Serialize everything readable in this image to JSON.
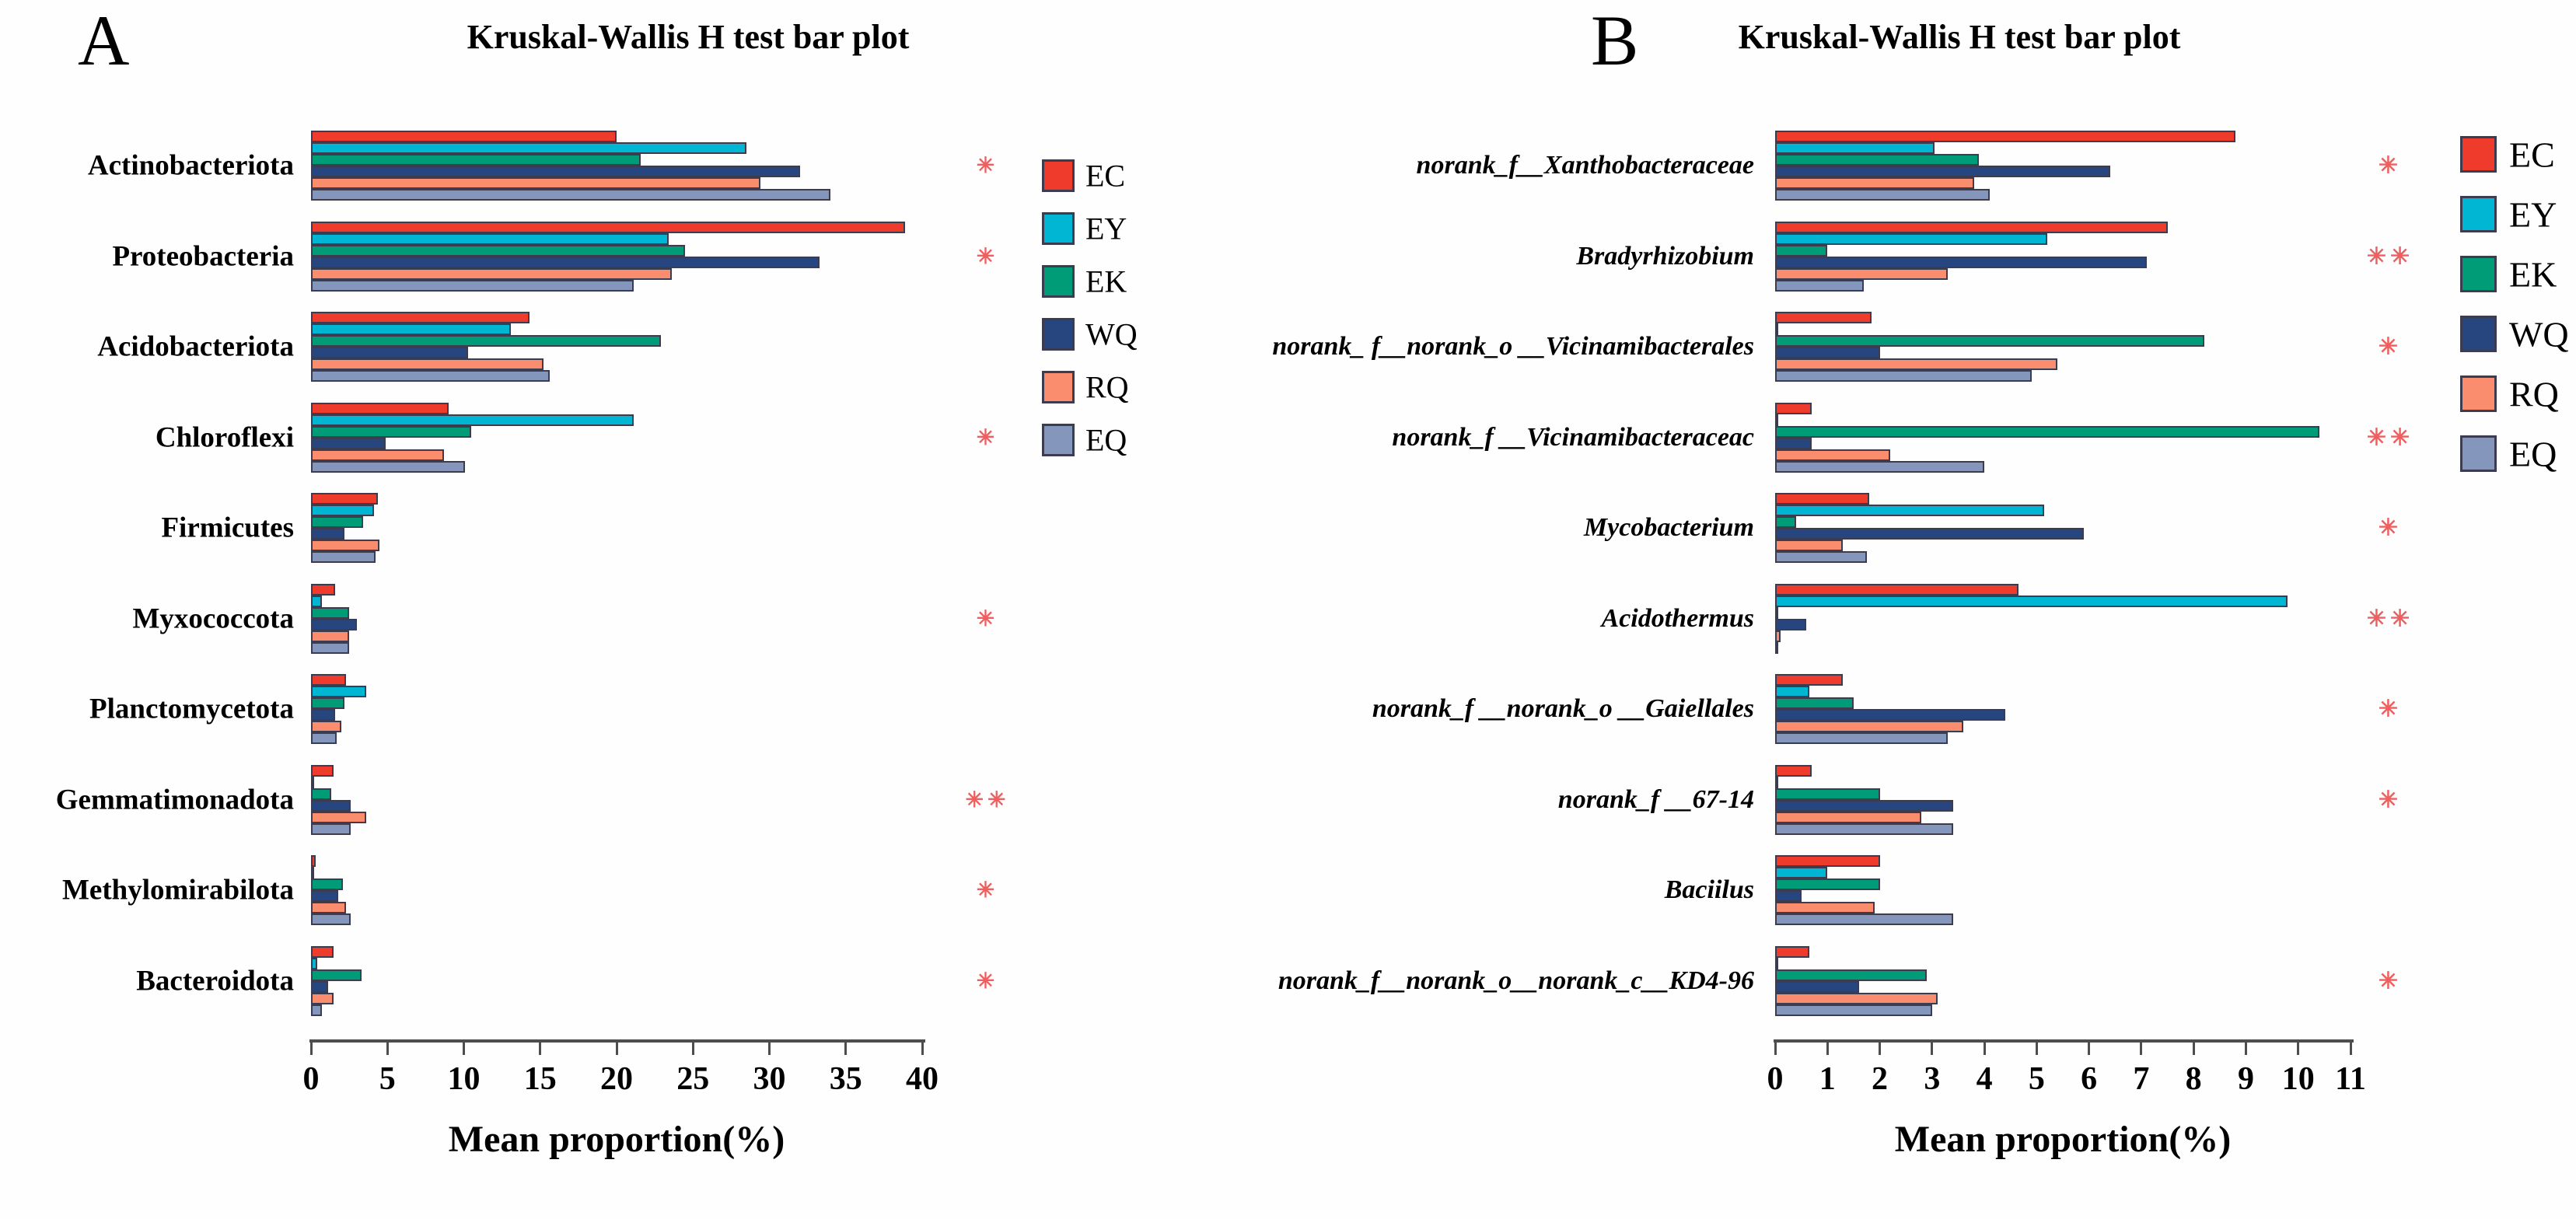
{
  "figure": {
    "description": "Kruskal-Wallis H test bar plots, two panels A and B",
    "significance_marks": {
      "single": "✳",
      "double": "✳✳"
    }
  },
  "colors": {
    "EC": "#EF3B2B",
    "EY": "#00B6D2",
    "EK": "#009C78",
    "WQ": "#27467F",
    "RQ": "#FB8D6F",
    "EQ": "#8496BB",
    "significance": "#EF5F5F",
    "axis": "#4D4D4D",
    "bar_border": "#3C3C50"
  },
  "chart_data": [
    {
      "type": "bar",
      "orientation": "horizontal",
      "panel_letter": "A",
      "title": "Kruskal-Wallis H test bar plot",
      "xlabel": "Mean proportion(%)",
      "xlim": [
        0,
        40
      ],
      "xticks": [
        0,
        5,
        10,
        15,
        20,
        25,
        30,
        35,
        40
      ],
      "grid": false,
      "legend_position": "right",
      "categories": [
        "Actinobacteriota",
        "Proteobacteria",
        "Acidobacteriota",
        "Chloroflexi",
        "Firmicutes",
        "Myxococcota",
        "Planctomycetota",
        "Gemmatimonadota",
        "Methylomirabilota",
        "Bacteroidota"
      ],
      "series": [
        {
          "name": "EC",
          "color": "#EF3B2B",
          "values": [
            20.0,
            38.9,
            14.3,
            9.0,
            4.4,
            1.6,
            2.3,
            1.5,
            0.3,
            1.5
          ]
        },
        {
          "name": "EY",
          "color": "#00B6D2",
          "values": [
            28.5,
            23.4,
            13.1,
            21.1,
            4.1,
            0.7,
            3.6,
            0.1,
            0.05,
            0.4
          ]
        },
        {
          "name": "EK",
          "color": "#009C78",
          "values": [
            21.6,
            24.5,
            22.9,
            10.5,
            3.4,
            2.5,
            2.2,
            1.3,
            2.1,
            3.3
          ]
        },
        {
          "name": "WQ",
          "color": "#27467F",
          "values": [
            32.0,
            33.3,
            10.3,
            4.9,
            2.2,
            3.0,
            1.6,
            2.6,
            1.8,
            1.1
          ]
        },
        {
          "name": "RQ",
          "color": "#FB8D6F",
          "values": [
            29.4,
            23.6,
            15.2,
            8.7,
            4.5,
            2.5,
            2.0,
            3.6,
            2.3,
            1.5
          ]
        },
        {
          "name": "EQ",
          "color": "#8496BB",
          "values": [
            34.0,
            21.1,
            15.6,
            10.1,
            4.2,
            2.5,
            1.7,
            2.6,
            2.6,
            0.7
          ]
        }
      ],
      "significance": [
        "*",
        "*",
        "",
        "*",
        "",
        "*",
        "",
        "**",
        "*",
        "*"
      ]
    },
    {
      "type": "bar",
      "orientation": "horizontal",
      "panel_letter": "B",
      "title": "Kruskal-Wallis H test bar plot",
      "xlabel": "Mean proportion(%)",
      "xlim": [
        0,
        11
      ],
      "xticks": [
        0,
        1,
        2,
        3,
        4,
        5,
        6,
        7,
        8,
        9,
        10,
        11
      ],
      "grid": false,
      "legend_position": "right",
      "categories": [
        "norank_f__Xanthobacteraceae",
        "Bradyrhizobium",
        "norank_ f__norank_o __Vicinamibacterales",
        "norank_f __Vicinamibacteraceac",
        "Mycobacterium",
        "Acidothermus",
        "norank_f __norank_o __Gaiellales",
        "norank_f __67-14",
        "Baciilus",
        "norank_f__norank_o__norank_c__KD4-96"
      ],
      "series": [
        {
          "name": "EC",
          "color": "#EF3B2B",
          "values": [
            8.8,
            7.5,
            1.85,
            0.7,
            1.8,
            4.65,
            1.3,
            0.7,
            2.0,
            0.65
          ]
        },
        {
          "name": "EY",
          "color": "#00B6D2",
          "values": [
            3.05,
            5.2,
            0.05,
            0.05,
            5.15,
            9.8,
            0.65,
            0.05,
            1.0,
            0.05
          ]
        },
        {
          "name": "EK",
          "color": "#009C78",
          "values": [
            3.9,
            1.0,
            8.2,
            10.4,
            0.4,
            0.05,
            1.5,
            2.0,
            2.0,
            2.9
          ]
        },
        {
          "name": "WQ",
          "color": "#27467F",
          "values": [
            6.4,
            7.1,
            2.0,
            0.7,
            5.9,
            0.6,
            4.4,
            3.4,
            0.5,
            1.6
          ]
        },
        {
          "name": "RQ",
          "color": "#FB8D6F",
          "values": [
            3.8,
            3.3,
            5.4,
            2.2,
            1.3,
            0.1,
            3.6,
            2.8,
            1.9,
            3.1
          ]
        },
        {
          "name": "EQ",
          "color": "#8496BB",
          "values": [
            4.1,
            1.7,
            4.9,
            4.0,
            1.75,
            0.05,
            3.3,
            3.4,
            3.4,
            3.0
          ]
        }
      ],
      "significance": [
        "*",
        "**",
        "*",
        "**",
        "*",
        "**",
        "*",
        "*",
        "",
        "*"
      ]
    }
  ]
}
